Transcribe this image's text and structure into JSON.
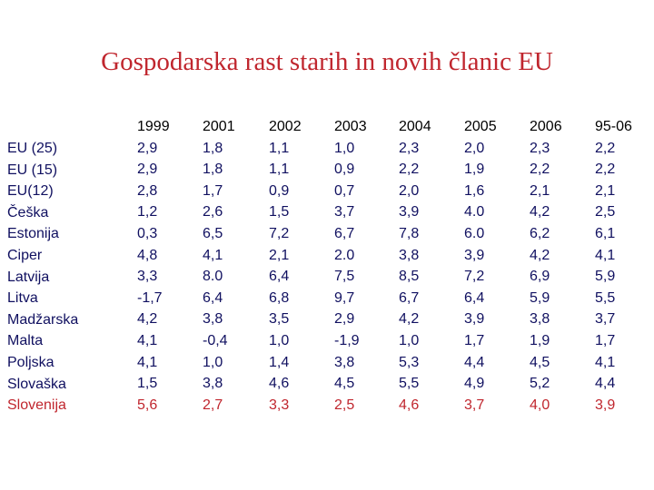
{
  "title": "Gospodarska rast starih in novih članic EU",
  "rows": [
    "EU (25)",
    "EU (15)",
    "EU(12)",
    "Češka",
    "Estonija",
    "Ciper",
    "Latvija",
    "Litva",
    "Madžarska",
    "Malta",
    "Poljska",
    "Slovaška",
    "Slovenija"
  ],
  "columns": [
    {
      "header": "1999",
      "values": [
        "2,9",
        "2,9",
        "2,8",
        "1,2",
        "0,3",
        "4,8",
        "3,3",
        "-1,7",
        "4,2",
        "4,1",
        "4,1",
        "1,5",
        "5,6"
      ]
    },
    {
      "header": "2001",
      "values": [
        "1,8",
        "1,8",
        "1,7",
        "2,6",
        "6,5",
        "4,1",
        "8.0",
        "6,4",
        "3,8",
        "-0,4",
        "1,0",
        "3,8",
        "2,7"
      ]
    },
    {
      "header": "2002",
      "values": [
        "1,1",
        "1,1",
        "0,9",
        "1,5",
        "7,2",
        "2,1",
        "6,4",
        "6,8",
        "3,5",
        "1,0",
        "1,4",
        "4,6",
        "3,3"
      ]
    },
    {
      "header": "2003",
      "values": [
        "1,0",
        "0,9",
        "0,7",
        "3,7",
        "6,7",
        "2.0",
        "7,5",
        "9,7",
        "2,9",
        "-1,9",
        "3,8",
        "4,5",
        "2,5"
      ]
    },
    {
      "header": "2004",
      "values": [
        "2,3",
        "2,2",
        "2,0",
        "3,9",
        "7,8",
        "3,8",
        "8,5",
        "6,7",
        "4,2",
        "1,0",
        "5,3",
        "5,5",
        "4,6"
      ]
    },
    {
      "header": "2005",
      "values": [
        "2,0",
        "1,9",
        "1,6",
        "4.0",
        "6.0",
        "3,9",
        "7,2",
        "6,4",
        "3,9",
        "1,7",
        "4,4",
        "4,9",
        "3,7"
      ]
    },
    {
      "header": "2006",
      "values": [
        "2,3",
        "2,2",
        "2,1",
        "4,2",
        "6,2",
        "4,2",
        "6,9",
        "5,9",
        "3,8",
        "1,9",
        "4,5",
        "5,2",
        "4,0"
      ]
    },
    {
      "header": "95-06",
      "values": [
        "2,2",
        "2,2",
        "2,1",
        "2,5",
        "6,1",
        "4,1",
        "5,9",
        "5,5",
        "3,7",
        "1,7",
        "4,1",
        "4,4",
        "3,9"
      ]
    }
  ],
  "highlight_color": "#c0262e",
  "text_color": "#101060"
}
